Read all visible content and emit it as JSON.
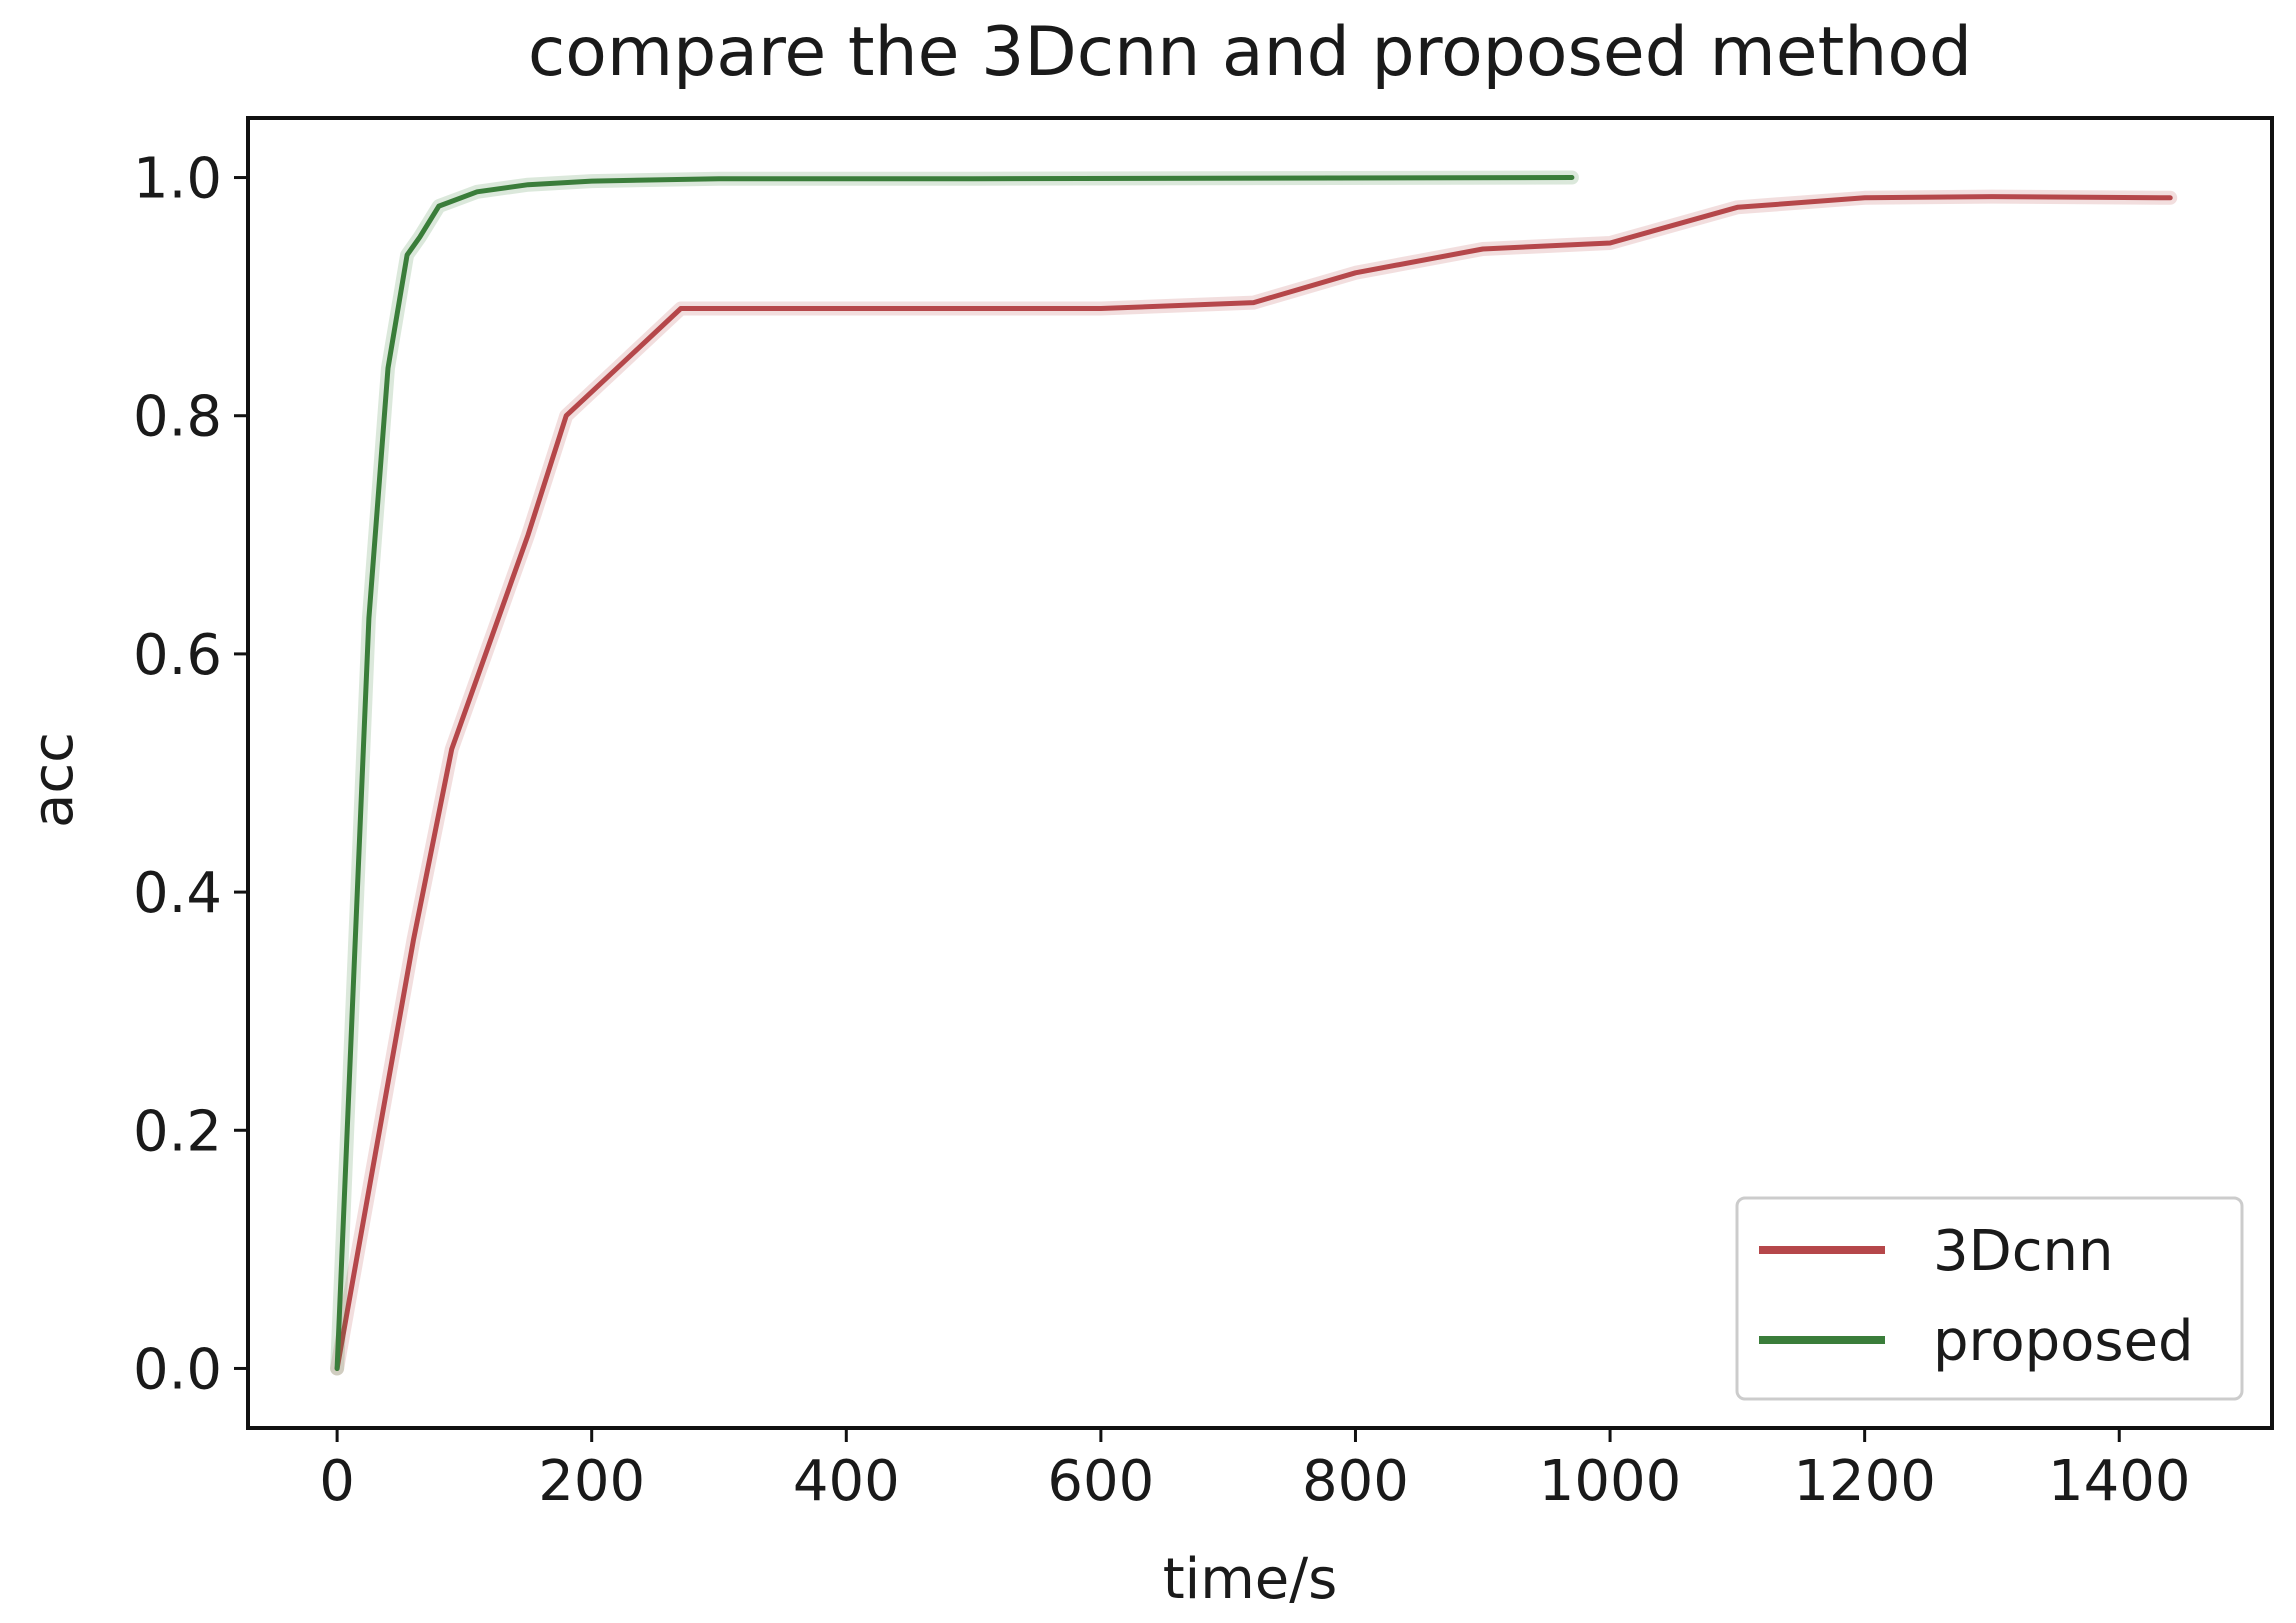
{
  "chart_data": {
    "type": "line",
    "title": "compare the 3Dcnn and proposed method",
    "xlabel": "time/s",
    "ylabel": "acc",
    "xlim": [
      -70,
      1520
    ],
    "ylim": [
      -0.05,
      1.05
    ],
    "xticks": [
      0,
      200,
      400,
      600,
      800,
      1000,
      1200,
      1400
    ],
    "yticks": [
      0.0,
      0.2,
      0.4,
      0.6,
      0.8,
      1.0
    ],
    "grid": false,
    "legend": "lower-right",
    "series": [
      {
        "name": "3Dcnn",
        "color": "#b5474a",
        "x": [
          0,
          30,
          60,
          90,
          120,
          150,
          180,
          220,
          270,
          400,
          600,
          720,
          800,
          900,
          1000,
          1100,
          1200,
          1300,
          1440
        ],
        "y": [
          0.0,
          0.18,
          0.36,
          0.52,
          0.61,
          0.7,
          0.8,
          0.84,
          0.89,
          0.89,
          0.89,
          0.895,
          0.92,
          0.94,
          0.945,
          0.975,
          0.983,
          0.984,
          0.983
        ]
      },
      {
        "name": "proposed",
        "color": "#3a7d3a",
        "x": [
          0,
          25,
          40,
          55,
          65,
          80,
          110,
          150,
          200,
          300,
          500,
          970
        ],
        "y": [
          0.0,
          0.63,
          0.84,
          0.935,
          0.95,
          0.976,
          0.988,
          0.994,
          0.997,
          0.999,
          0.999,
          1.0
        ]
      }
    ]
  }
}
